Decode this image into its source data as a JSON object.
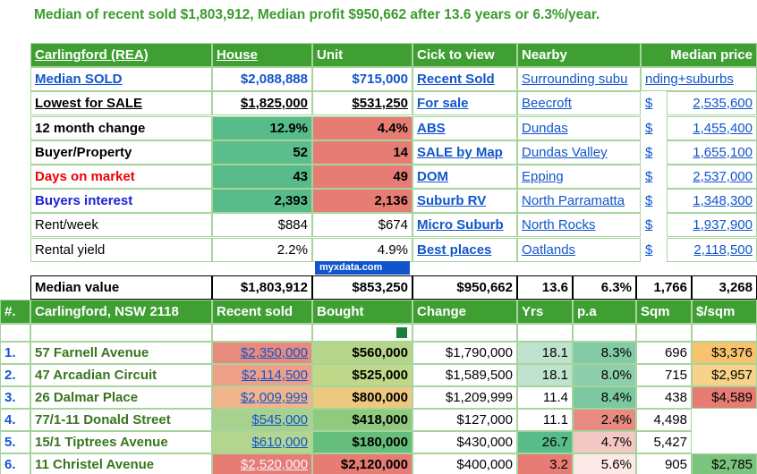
{
  "title": "Median of recent sold $1,803,912, Median profit $950,662 after 13.6 years or 6.3%/year.",
  "summary": {
    "header": [
      "Carlingford (REA)",
      "House",
      "Unit",
      "Cick to view"
    ],
    "rows": [
      [
        "Median SOLD",
        "$2,088,888",
        "$715,000",
        "Recent Sold"
      ],
      [
        "Lowest for SALE",
        "$1,825,000",
        "$531,250",
        "For sale"
      ],
      [
        "12 month change",
        "12.9%",
        "4.4%",
        "ABS"
      ],
      [
        "Buyer/Property",
        "52",
        "14",
        "SALE by Map"
      ],
      [
        "Days on market",
        "43",
        "49",
        "DOM"
      ],
      [
        "Buyers interest",
        "2,393",
        "2,136",
        "Suburb RV"
      ],
      [
        "Rent/week",
        "$884",
        "$674",
        "Micro Suburb"
      ],
      [
        "Rental yield",
        "2.2%",
        "4.9%",
        "Best places"
      ]
    ],
    "fills": [
      [
        null,
        null,
        null,
        null
      ],
      [
        null,
        null,
        null,
        null
      ],
      [
        null,
        "#57bb8a",
        "#e67c73",
        null
      ],
      [
        null,
        "#5cbd8d",
        "#e67c73",
        null
      ],
      [
        null,
        "#57bb8a",
        "#e67c73",
        null
      ],
      [
        null,
        "#57bb8a",
        "#e67c73",
        null
      ],
      [
        null,
        null,
        null,
        null
      ],
      [
        null,
        null,
        null,
        null
      ]
    ]
  },
  "nearby": {
    "header": [
      "Nearby",
      "Median price"
    ],
    "overflow": [
      "Surrounding subu",
      "nding+suburbs"
    ],
    "rows": [
      [
        "Beecroft",
        "$",
        "2,535,600"
      ],
      [
        "Dundas",
        "$",
        "1,455,400"
      ],
      [
        "Dundas Valley",
        "$",
        "1,655,100"
      ],
      [
        "Epping",
        "$",
        "2,537,000"
      ],
      [
        "North Parramatta",
        "$",
        "1,348,300"
      ],
      [
        "North Rocks",
        "$",
        "1,937,900"
      ],
      [
        "Oatlands",
        "$",
        "2,118,500"
      ]
    ]
  },
  "source": "myxdata.com",
  "median_row": [
    "Median value",
    "$1,803,912",
    "$853,250",
    "$950,662",
    "13.6",
    "6.3%",
    "1,766",
    "3,268"
  ],
  "listing": {
    "header": [
      "#.",
      "Carlingford, NSW 2118",
      "Recent sold",
      "Bought",
      "Change",
      "Yrs",
      "p.a",
      "Sqm",
      "$/sqm"
    ],
    "rows": [
      [
        "1.",
        "57 Farnell Avenue",
        "$2,350,000",
        "$560,000",
        "$1,790,000",
        "18.1",
        "8.3%",
        "696",
        "$3,376"
      ],
      [
        "2.",
        "47 Arcadian Circuit",
        "$2,114,500",
        "$525,000",
        "$1,589,500",
        "18.1",
        "8.0%",
        "715",
        "$2,957"
      ],
      [
        "3.",
        "26 Dalmar Place",
        "$2,009,999",
        "$800,000",
        "$1,209,999",
        "11.4",
        "8.4%",
        "438",
        "$4,589"
      ],
      [
        "4.",
        "77/1-11 Donald Street",
        "$545,000",
        "$418,000",
        "$127,000",
        "11.1",
        "2.4%",
        "4,498",
        null
      ],
      [
        "5.",
        "15/1 Tiptrees Avenue",
        "$610,000",
        "$180,000",
        "$430,000",
        "26.7",
        "4.7%",
        "5,427",
        null
      ],
      [
        "6.",
        "11 Christel Avenue",
        "$2,520,000",
        "$2,120,000",
        "$400,000",
        "3.2",
        "5.6%",
        "905",
        "$2,785"
      ]
    ],
    "fills": [
      [
        null,
        null,
        "#e88a7e",
        "#b5d68a",
        null,
        "#bfe3cf",
        "#82cba5",
        null,
        "#f9c36e"
      ],
      [
        null,
        null,
        "#ee9f88",
        "#bfd88a",
        null,
        "#bfe3cf",
        "#8dcfac",
        null,
        "#f7d28a"
      ],
      [
        null,
        null,
        "#f2b48a",
        "#ecc97f",
        null,
        null,
        "#7cc9a1",
        null,
        "#e67c73"
      ],
      [
        null,
        null,
        "#a9d18e",
        "#8fca7f",
        null,
        null,
        "#e88a81",
        null,
        null
      ],
      [
        null,
        null,
        "#b4d58e",
        "#66be7c",
        null,
        "#57bb8a",
        "#f3c7c3",
        null,
        null
      ],
      [
        null,
        null,
        "#e67c73",
        "#e67c73",
        null,
        "#e67c73",
        "#fde9e7",
        null,
        "#7cc47e"
      ]
    ]
  }
}
